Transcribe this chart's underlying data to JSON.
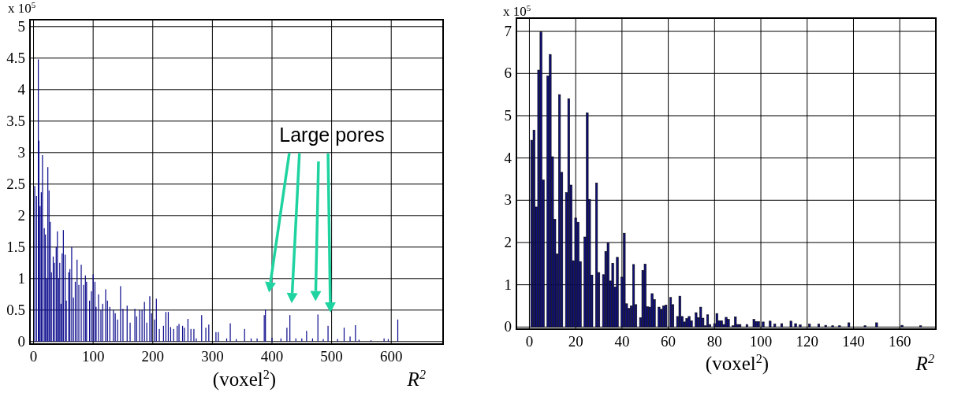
{
  "chart_data": [
    {
      "type": "bar",
      "ylabel": "x 10$^{5}$",
      "xlabel": "(voxel$^{2}$)",
      "annotations": [
        "R$^{2}$",
        "Large pores"
      ],
      "xlim": [
        -6,
        687
      ],
      "ylim": [
        -0.04,
        5.11
      ],
      "xticks": [
        0,
        100,
        200,
        300,
        400,
        500,
        600
      ],
      "yticks": [
        0,
        {
          "value": 0.5,
          "label": "0.5"
        },
        1,
        {
          "value": 1.5,
          "label": "1.5"
        },
        2,
        {
          "value": 2.5,
          "label": "2.5"
        },
        3,
        {
          "value": 3.5,
          "label": "3.5"
        },
        4,
        {
          "value": 4.5,
          "label": "4.5"
        },
        5
      ],
      "grid": true,
      "color": "#0a0a8c",
      "x": [
        2,
        5,
        8,
        9,
        11,
        13,
        15,
        18,
        20,
        22,
        24,
        26,
        28,
        30,
        33,
        35,
        38,
        40,
        42,
        44,
        46,
        48,
        50,
        53,
        55,
        59,
        61,
        64,
        67,
        70,
        73,
        76,
        80,
        84,
        87,
        89,
        94,
        97,
        100,
        103,
        105,
        109,
        113,
        116,
        121,
        124,
        128,
        134,
        137,
        141,
        146,
        150,
        157,
        162,
        170,
        173,
        178,
        182,
        186,
        190,
        195,
        198,
        203,
        206,
        211,
        218,
        222,
        226,
        230,
        235,
        241,
        244,
        250,
        253,
        259,
        264,
        269,
        273,
        282,
        289,
        294,
        306,
        310,
        324,
        330,
        340,
        354,
        365,
        375,
        387,
        389,
        400,
        415,
        425,
        430,
        440,
        450,
        458,
        468,
        477,
        486,
        494,
        510,
        521,
        531,
        540,
        546,
        566,
        588,
        595,
        611
      ],
      "values": [
        2.47,
        2.31,
        4.48,
        3.19,
        2.15,
        2.37,
        2.96,
        1.8,
        1.7,
        1.0,
        2.77,
        2.4,
        1.9,
        1.1,
        1.35,
        1.25,
        1.5,
        1.75,
        1.0,
        1.25,
        0.6,
        1.4,
        1.77,
        1.38,
        0.65,
        1.1,
        1.15,
        1.5,
        0.7,
        0.95,
        1.3,
        0.9,
        1.22,
        0.9,
        1.05,
        0.95,
        0.65,
        0.8,
        1.07,
        0.95,
        0.55,
        0.75,
        0.5,
        0.6,
        0.83,
        0.65,
        0.55,
        0.5,
        0.45,
        0.35,
        0.88,
        0.52,
        0.57,
        0.3,
        0.52,
        0.4,
        0.5,
        0.5,
        0.63,
        0.3,
        0.72,
        0.45,
        0.35,
        0.68,
        0.2,
        0.25,
        0.47,
        0.47,
        0.23,
        0.2,
        0.25,
        0.28,
        0.25,
        0.22,
        0.36,
        0.2,
        0.2,
        0.05,
        0.42,
        0.22,
        0.27,
        0.15,
        0.15,
        0.05,
        0.29,
        0.04,
        0.2,
        0.05,
        0.05,
        0.42,
        0.51,
        0.06,
        0.05,
        0.22,
        0.42,
        0.05,
        0.05,
        0.17,
        0.05,
        0.43,
        0.04,
        0.25,
        0.04,
        0.22,
        0.08,
        0.26,
        0.03,
        0.02,
        0.05,
        0.04,
        0.35
      ]
    },
    {
      "type": "bar",
      "ylabel": "x 10$^{5}$",
      "xlabel": "(voxel$^{2}$)",
      "annotations": [
        "R$^{2}$"
      ],
      "xlim": [
        -5.6,
        175.6
      ],
      "ylim": [
        -0.05,
        7.31
      ],
      "xticks": [
        0,
        20,
        40,
        60,
        80,
        100,
        120,
        140,
        160
      ],
      "yticks": [
        0,
        1,
        2,
        3,
        4,
        5,
        6,
        7
      ],
      "grid": true,
      "color": "#10107a",
      "x": [
        1,
        2,
        3,
        4,
        5,
        6,
        8,
        9,
        10,
        11,
        12,
        13,
        14,
        16,
        17,
        18,
        19,
        20,
        21,
        22,
        24,
        25,
        26,
        27,
        29,
        30,
        32,
        33,
        34,
        35,
        36,
        37,
        38,
        40,
        41,
        42,
        43,
        44,
        45,
        46,
        48,
        49,
        50,
        51,
        52,
        53,
        54,
        56,
        57,
        58,
        59,
        61,
        62,
        64,
        65,
        66,
        67,
        68,
        69,
        70,
        72,
        73,
        74,
        75,
        76,
        77,
        78,
        80,
        81,
        82,
        83,
        84,
        85,
        86,
        88,
        89,
        90,
        91,
        94,
        97,
        98,
        99,
        101,
        104,
        106,
        109,
        113,
        115,
        117,
        121,
        125,
        128,
        131,
        134,
        138,
        145,
        150,
        161,
        169
      ],
      "values": [
        4.42,
        4.66,
        2.84,
        6.08,
        6.98,
        3.48,
        5.94,
        6.45,
        4.03,
        2.55,
        1.73,
        5.5,
        3.66,
        3.18,
        5.4,
        3.36,
        1.57,
        2.58,
        2.48,
        1.55,
        2.13,
        5.07,
        3.02,
        1.23,
        3.41,
        1.29,
        1.24,
        1.79,
        1.99,
        1.09,
        1.51,
        0.95,
        1.65,
        1.18,
        2.22,
        0.55,
        0.44,
        0.5,
        1.48,
        0.53,
        0.22,
        1.34,
        1.49,
        0.48,
        0.47,
        0.79,
        0.65,
        0.47,
        0.42,
        0.5,
        0.52,
        0.7,
        0.53,
        0.25,
        0.73,
        0.25,
        0.12,
        0.2,
        0.25,
        0.15,
        0.34,
        0.22,
        0.47,
        0.21,
        0.03,
        0.29,
        0.06,
        0.08,
        0.32,
        0.15,
        0.15,
        0.06,
        0.23,
        0.18,
        0.03,
        0.24,
        0.06,
        0.06,
        0.06,
        0.18,
        0.13,
        0.13,
        0.12,
        0.14,
        0.07,
        0.08,
        0.14,
        0.08,
        0.05,
        0.07,
        0.07,
        0.04,
        0.03,
        0.03,
        0.1,
        0.03,
        0.1,
        0.04,
        0.03
      ]
    }
  ]
}
